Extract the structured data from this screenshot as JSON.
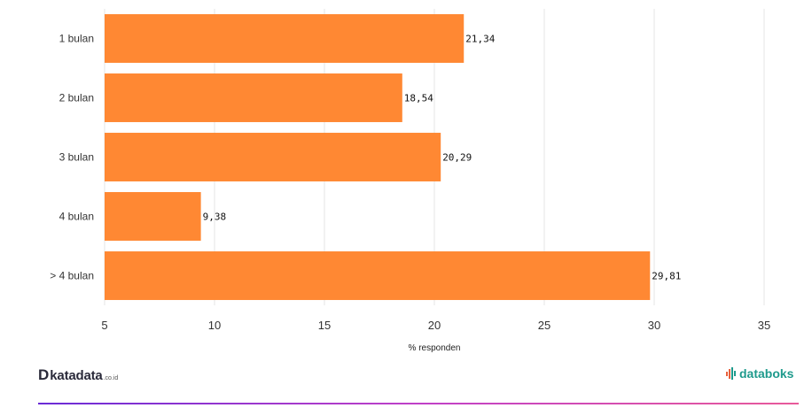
{
  "chart_data": {
    "type": "bar",
    "orientation": "horizontal",
    "categories": [
      "1 bulan",
      "2 bulan",
      "3 bulan",
      "4 bulan",
      "> 4 bulan"
    ],
    "values": [
      21.34,
      18.54,
      20.29,
      9.38,
      29.81
    ],
    "value_labels": [
      "21,34",
      "18,54",
      "20,29",
      "9,38",
      "29,81"
    ],
    "xlabel": "% responden",
    "xlim": [
      5,
      35
    ],
    "xticks": [
      5,
      10,
      15,
      20,
      25,
      30,
      35
    ],
    "grid": true,
    "bar_color": "#ff8833"
  },
  "footer": {
    "brand_left_mark": "D",
    "brand_left": "katadata",
    "brand_left_suffix": ".co.id",
    "brand_right": "databoks",
    "brand_right_icon": "databoks-signal-icon",
    "brand_right_color": "#1e9a8c"
  }
}
